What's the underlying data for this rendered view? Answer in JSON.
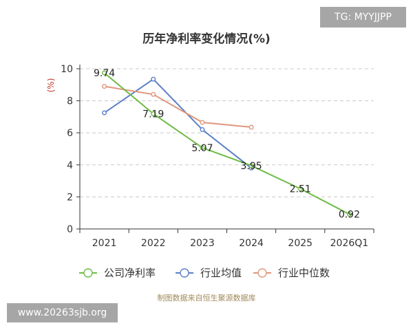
{
  "badge": {
    "text": "TG: MYYJJPP"
  },
  "watermark": {
    "text": "www.20263sjb.org"
  },
  "source": "制图数据来自恒生聚源数据库",
  "chart_data": {
    "type": "line",
    "title": "历年净利率变化情况(%)",
    "ylabel": "(%)",
    "xlabel": "",
    "categories": [
      "2021",
      "2022",
      "2023",
      "2024",
      "2025",
      "2026Q1"
    ],
    "ylim": [
      0,
      10
    ],
    "yticks": [
      0,
      2,
      4,
      6,
      8,
      10
    ],
    "grid": true,
    "legend_position": "bottom",
    "series": [
      {
        "name": "公司净利率",
        "color": "#6dbb45",
        "values": [
          9.74,
          7.19,
          5.07,
          3.95,
          2.51,
          0.92
        ],
        "labels": [
          "9.74",
          "7.19",
          "5.07",
          "3.95",
          "2.51",
          "0.92"
        ]
      },
      {
        "name": "行业均值",
        "color": "#5b7fc7",
        "values": [
          7.25,
          9.35,
          6.2,
          3.8,
          null,
          null
        ]
      },
      {
        "name": "行业中位数",
        "color": "#e0967a",
        "values": [
          8.9,
          8.4,
          6.65,
          6.35,
          null,
          null
        ]
      }
    ]
  }
}
